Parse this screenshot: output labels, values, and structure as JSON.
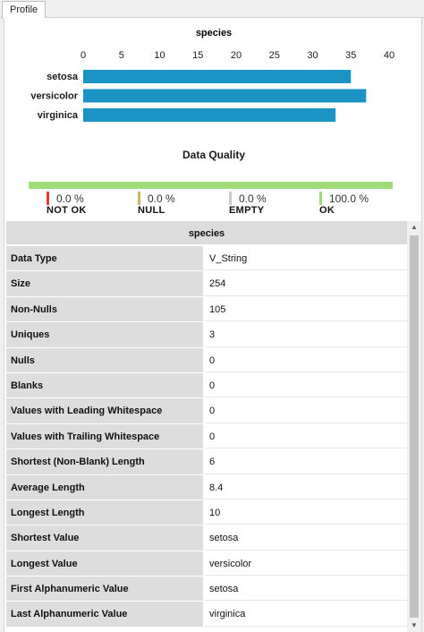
{
  "tabs": [
    {
      "label": "Profile"
    }
  ],
  "chart_data": {
    "type": "bar",
    "orientation": "horizontal",
    "title": "species",
    "categories": [
      "setosa",
      "versicolor",
      "virginica"
    ],
    "values": [
      35,
      37,
      33
    ],
    "xlim": [
      0,
      40
    ],
    "ticks": [
      0,
      5,
      10,
      15,
      20,
      25,
      30,
      35,
      40
    ],
    "tick_position": "top",
    "bar_color": "#1b93c5",
    "grid": false
  },
  "data_quality": {
    "title": "Data Quality",
    "bar_color": "#9fdc79",
    "items": [
      {
        "label": "NOT OK",
        "pct": "0.0 %",
        "color": "#e53935"
      },
      {
        "label": "NULL",
        "pct": "0.0 %",
        "color": "#c8b46a"
      },
      {
        "label": "EMPTY",
        "pct": "0.0 %",
        "color": "#c9c9c9"
      },
      {
        "label": "OK",
        "pct": "100.0 %",
        "color": "#9fdc79"
      }
    ]
  },
  "table": {
    "header": "species",
    "rows": [
      {
        "key": "Data Type",
        "value": "V_String"
      },
      {
        "key": "Size",
        "value": "254"
      },
      {
        "key": "Non-Nulls",
        "value": "105"
      },
      {
        "key": "Uniques",
        "value": "3"
      },
      {
        "key": "Nulls",
        "value": "0"
      },
      {
        "key": "Blanks",
        "value": "0"
      },
      {
        "key": "Values with Leading Whitespace",
        "value": "0"
      },
      {
        "key": "Values with Trailing Whitespace",
        "value": "0"
      },
      {
        "key": "Shortest (Non-Blank) Length",
        "value": "6"
      },
      {
        "key": "Average Length",
        "value": "8.4"
      },
      {
        "key": "Longest Length",
        "value": "10"
      },
      {
        "key": "Shortest Value",
        "value": "setosa"
      },
      {
        "key": "Longest Value",
        "value": "versicolor"
      },
      {
        "key": "First Alphanumeric Value",
        "value": "setosa"
      },
      {
        "key": "Last Alphanumeric Value",
        "value": "virginica"
      }
    ]
  },
  "scrollbar": {
    "up_icon": "triangle-up",
    "down_icon": "triangle-down"
  }
}
